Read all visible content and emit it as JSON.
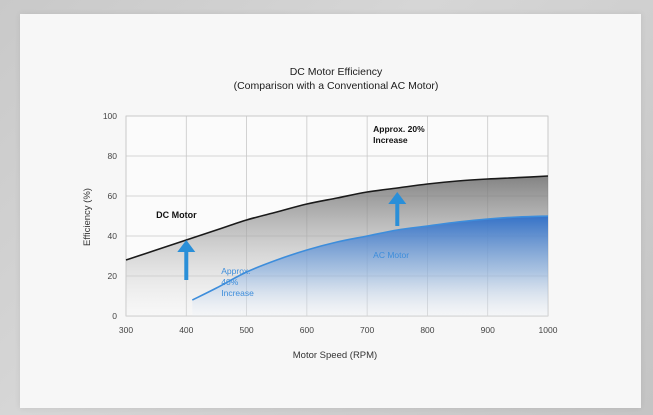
{
  "chart_data": {
    "type": "area",
    "title": "DC Motor Efficiency",
    "subtitle": "(Comparison with a Conventional AC Motor)",
    "xlabel": "Motor Speed (RPM)",
    "ylabel": "Efficiency (%)",
    "xlim": [
      300,
      1000
    ],
    "ylim": [
      0,
      100
    ],
    "x_ticks": [
      "300",
      "400",
      "500",
      "600",
      "700",
      "800",
      "900",
      "1000"
    ],
    "y_ticks": [
      "0",
      "20",
      "40",
      "60",
      "80",
      "100"
    ],
    "grid": true,
    "series": [
      {
        "name": "DC Motor",
        "color": "#1a1a1a",
        "x": [
          300,
          350,
          400,
          450,
          500,
          550,
          600,
          650,
          700,
          750,
          800,
          850,
          900,
          950,
          1000
        ],
        "y": [
          28,
          33,
          38,
          43,
          48,
          52,
          56,
          59,
          62,
          64,
          66,
          67.5,
          68.5,
          69.2,
          70
        ]
      },
      {
        "name": "AC Motor",
        "color": "#3d8ddb",
        "x": [
          410,
          450,
          500,
          550,
          600,
          650,
          700,
          750,
          800,
          850,
          900,
          950,
          1000
        ],
        "y": [
          8,
          14,
          22,
          28,
          33,
          37,
          40,
          43,
          45,
          47,
          48.5,
          49.5,
          50
        ]
      }
    ],
    "annotations": [
      {
        "text": "DC Motor",
        "color": "#111111"
      },
      {
        "text": "AC Motor",
        "color": "#3d8ddb"
      },
      {
        "text": [
          "Approx. 20%",
          "Increase"
        ],
        "color": "#111111"
      },
      {
        "text": [
          "Approx.",
          "40%",
          "Increase"
        ],
        "color": "#3d8ddb"
      }
    ],
    "arrow_color": "#2a8fd8"
  }
}
